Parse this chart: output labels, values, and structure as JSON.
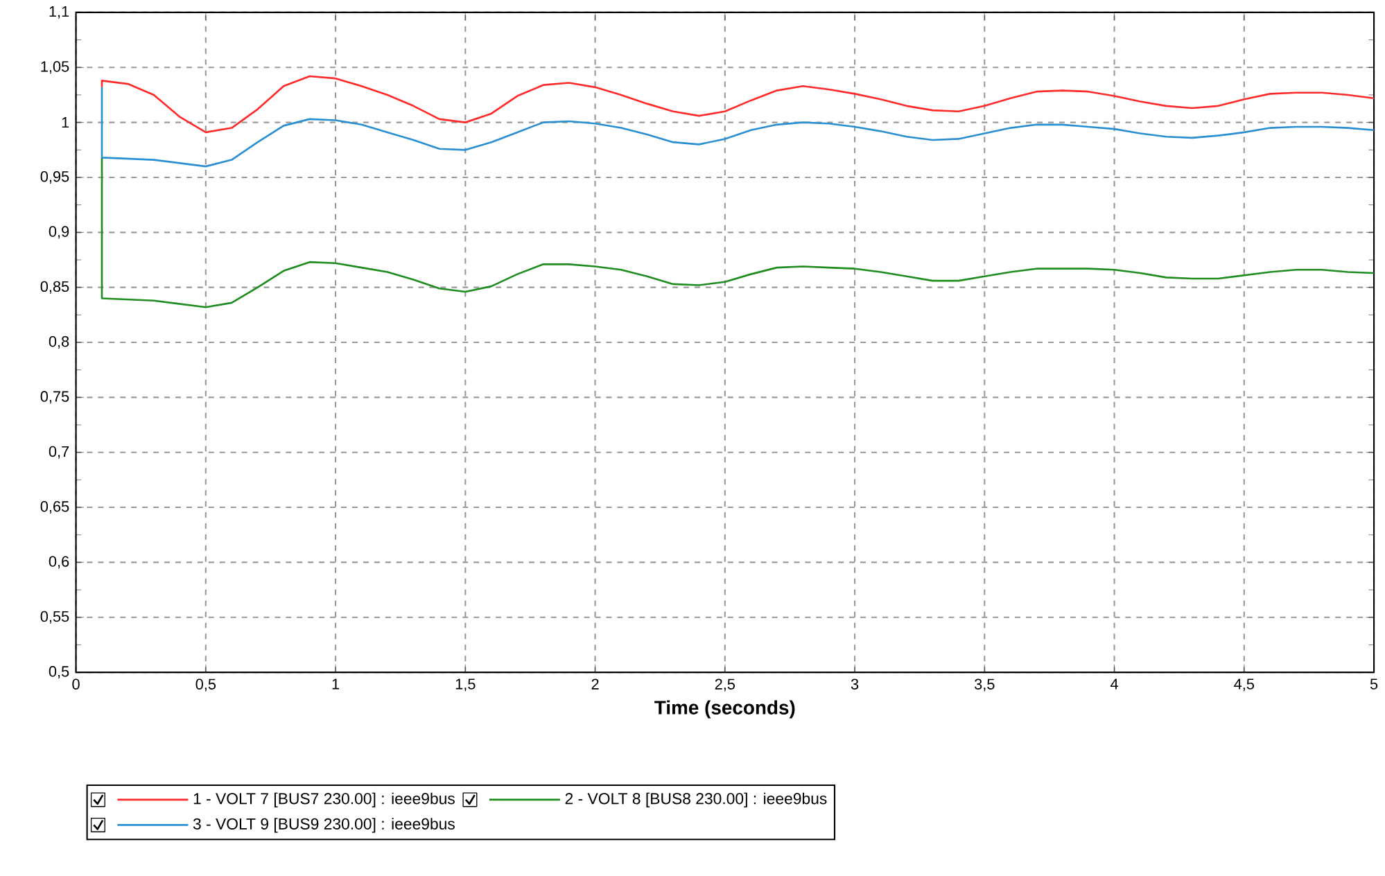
{
  "chart_data": {
    "type": "line",
    "xlabel": "Time (seconds)",
    "xlim": [
      0,
      5
    ],
    "xticks": [
      0,
      {
        "value": 0.5,
        "label": "0,5"
      },
      1,
      {
        "value": 1.5,
        "label": "1,5"
      },
      2,
      {
        "value": 2.5,
        "label": "2,5"
      },
      3,
      {
        "value": 3.5,
        "label": "3,5"
      },
      4,
      {
        "value": 4.5,
        "label": "4,5"
      },
      5
    ],
    "ylim": [
      0.5,
      1.1
    ],
    "yticks": [
      {
        "value": 0.5,
        "label": "0,5"
      },
      {
        "value": 0.55,
        "label": "0,55"
      },
      {
        "value": 0.6,
        "label": "0,6"
      },
      {
        "value": 0.65,
        "label": "0,65"
      },
      {
        "value": 0.7,
        "label": "0,7"
      },
      {
        "value": 0.75,
        "label": "0,75"
      },
      {
        "value": 0.8,
        "label": "0,8"
      },
      {
        "value": 0.85,
        "label": "0,85"
      },
      {
        "value": 0.9,
        "label": "0,9"
      },
      {
        "value": 0.95,
        "label": "0,95"
      },
      {
        "value": 1,
        "label": "1"
      },
      {
        "value": 1.05,
        "label": "1,05"
      },
      {
        "value": 1.1,
        "label": "1,1"
      }
    ],
    "grid": true,
    "legend": "bottom",
    "marker": "none",
    "line_style": "solid",
    "series": [
      {
        "name": "1 - VOLT    7 [BUS7     230.00] : ieee9bus",
        "color": "#ff2a2a",
        "x": [
          0.1,
          0.1,
          0.2,
          0.3,
          0.4,
          0.5,
          0.6,
          0.7,
          0.8,
          0.9,
          1.0,
          1.1,
          1.2,
          1.3,
          1.4,
          1.5,
          1.6,
          1.7,
          1.8,
          1.9,
          2.0,
          2.1,
          2.2,
          2.3,
          2.4,
          2.5,
          2.6,
          2.7,
          2.8,
          2.9,
          3.0,
          3.1,
          3.2,
          3.3,
          3.4,
          3.5,
          3.6,
          3.7,
          3.8,
          3.9,
          4.0,
          4.1,
          4.2,
          4.3,
          4.4,
          4.5,
          4.6,
          4.7,
          4.8,
          4.9,
          5.0
        ],
        "values": [
          1.032,
          1.038,
          1.035,
          1.025,
          1.005,
          0.991,
          0.995,
          1.012,
          1.033,
          1.042,
          1.04,
          1.033,
          1.025,
          1.015,
          1.003,
          1.0,
          1.008,
          1.024,
          1.034,
          1.036,
          1.032,
          1.025,
          1.017,
          1.01,
          1.006,
          1.01,
          1.02,
          1.029,
          1.033,
          1.03,
          1.026,
          1.021,
          1.015,
          1.011,
          1.01,
          1.015,
          1.022,
          1.028,
          1.029,
          1.028,
          1.024,
          1.019,
          1.015,
          1.013,
          1.015,
          1.021,
          1.026,
          1.027,
          1.027,
          1.025,
          1.022
        ]
      },
      {
        "name": "2 - VOLT    8 [BUS8     230.00] : ieee9bus",
        "color": "#1e8c1e",
        "x": [
          0.1,
          0.1,
          0.3,
          0.4,
          0.5,
          0.6,
          0.7,
          0.8,
          0.9,
          1.0,
          1.1,
          1.2,
          1.3,
          1.4,
          1.5,
          1.6,
          1.7,
          1.8,
          1.9,
          2.0,
          2.1,
          2.2,
          2.3,
          2.4,
          2.5,
          2.6,
          2.7,
          2.8,
          2.9,
          3.0,
          3.1,
          3.2,
          3.3,
          3.4,
          3.5,
          3.6,
          3.7,
          3.8,
          3.9,
          4.0,
          4.1,
          4.2,
          4.3,
          4.4,
          4.5,
          4.6,
          4.7,
          4.8,
          4.9,
          5.0
        ],
        "values": [
          0.968,
          0.84,
          0.838,
          0.835,
          0.832,
          0.836,
          0.85,
          0.865,
          0.873,
          0.872,
          0.868,
          0.864,
          0.857,
          0.849,
          0.846,
          0.851,
          0.862,
          0.871,
          0.871,
          0.869,
          0.866,
          0.86,
          0.853,
          0.852,
          0.855,
          0.862,
          0.868,
          0.869,
          0.868,
          0.867,
          0.864,
          0.86,
          0.856,
          0.856,
          0.86,
          0.864,
          0.867,
          0.867,
          0.867,
          0.866,
          0.863,
          0.859,
          0.858,
          0.858,
          0.861,
          0.864,
          0.866,
          0.866,
          0.864,
          0.863
        ]
      },
      {
        "name": "3 - VOLT    9 [BUS9     230.00] : ieee9bus",
        "color": "#2a8fd0",
        "x": [
          0.1,
          0.1,
          0.3,
          0.4,
          0.5,
          0.6,
          0.7,
          0.8,
          0.9,
          1.0,
          1.1,
          1.2,
          1.3,
          1.4,
          1.5,
          1.6,
          1.7,
          1.8,
          1.9,
          2.0,
          2.1,
          2.2,
          2.3,
          2.4,
          2.5,
          2.6,
          2.7,
          2.8,
          2.9,
          3.0,
          3.1,
          3.2,
          3.3,
          3.4,
          3.5,
          3.6,
          3.7,
          3.8,
          3.9,
          4.0,
          4.1,
          4.2,
          4.3,
          4.4,
          4.5,
          4.6,
          4.7,
          4.8,
          4.9,
          5.0
        ],
        "values": [
          1.032,
          0.968,
          0.966,
          0.963,
          0.96,
          0.966,
          0.982,
          0.997,
          1.003,
          1.002,
          0.998,
          0.991,
          0.984,
          0.976,
          0.975,
          0.982,
          0.991,
          1.0,
          1.001,
          0.999,
          0.995,
          0.989,
          0.982,
          0.98,
          0.985,
          0.993,
          0.998,
          1.0,
          0.999,
          0.996,
          0.992,
          0.987,
          0.984,
          0.985,
          0.99,
          0.995,
          0.998,
          0.998,
          0.996,
          0.994,
          0.99,
          0.987,
          0.986,
          0.988,
          0.991,
          0.995,
          0.996,
          0.996,
          0.995,
          0.993
        ]
      }
    ]
  }
}
